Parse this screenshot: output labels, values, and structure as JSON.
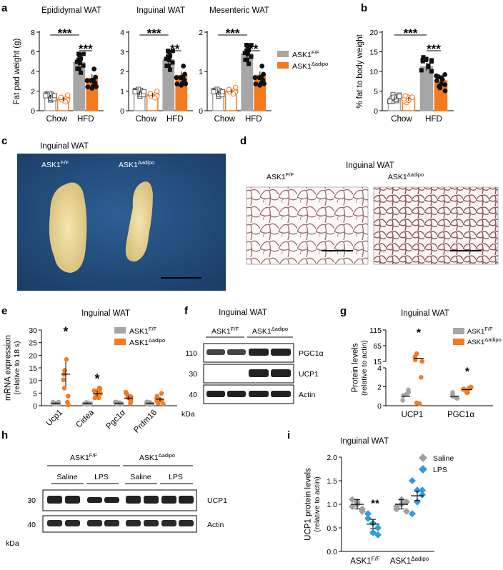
{
  "labels": {
    "a": "a",
    "b": "b",
    "c": "c",
    "d": "d",
    "e": "e",
    "f": "f",
    "g": "g",
    "h": "h",
    "i": "i"
  },
  "legend": {
    "ff_base": "ASK1",
    "ff_sup": "F/F",
    "ad_base": "ASK1",
    "ad_sup": "Δadipo",
    "saline": "Saline",
    "lps": "LPS"
  },
  "colors": {
    "ff": "#a6a6a6",
    "ad": "#f47a20",
    "saline": "#a0a0a0",
    "lps": "#2e9be0"
  },
  "panel_c": {
    "title": "Inguinal WAT"
  },
  "panel_d": {
    "title": "Inguinal WAT"
  },
  "panel_f": {
    "title": "Inguinal WAT",
    "kda": "kDa",
    "markers": [
      "110",
      "30",
      "40"
    ],
    "bands": [
      "PGC1α",
      "UCP1",
      "Actin"
    ]
  },
  "panel_h": {
    "kda": "kDa",
    "markers": [
      "30",
      "40"
    ],
    "bands": [
      "UCP1",
      "Actin"
    ],
    "groups": [
      "Saline",
      "LPS",
      "Saline",
      "LPS"
    ]
  },
  "chart_data": [
    {
      "id": "a1",
      "type": "bar",
      "title": "Epididymal WAT",
      "ylabel": "Fat pad weight (g)",
      "categories": [
        "Chow",
        "HFD"
      ],
      "ylim": [
        0,
        8
      ],
      "yticks": [
        0,
        2,
        4,
        6,
        8
      ],
      "series": [
        {
          "name": "ASK1 F/F",
          "values": [
            1.4,
            4.9
          ]
        },
        {
          "name": "ASK1 Δadipo",
          "values": [
            1.2,
            3.3
          ]
        }
      ],
      "sig": [
        {
          "label": "***",
          "pair": "chow-ff vs hfd-ff"
        },
        {
          "label": "***",
          "pair": "hfd-ff vs hfd-ad"
        }
      ]
    },
    {
      "id": "a2",
      "type": "bar",
      "title": "Inguinal WAT",
      "ylabel": "",
      "categories": [
        "Chow",
        "HFD"
      ],
      "ylim": [
        0,
        4
      ],
      "yticks": [
        0,
        1,
        2,
        3,
        4
      ],
      "series": [
        {
          "name": "ASK1 F/F",
          "values": [
            0.9,
            2.6
          ]
        },
        {
          "name": "ASK1 Δadipo",
          "values": [
            0.8,
            1.8
          ]
        }
      ],
      "sig": [
        {
          "label": "***",
          "pair": "chow-ff vs hfd-ff"
        },
        {
          "label": "**",
          "pair": "hfd-ff vs hfd-ad"
        }
      ]
    },
    {
      "id": "a3",
      "type": "bar",
      "title": "Mesenteric WAT",
      "ylabel": "",
      "categories": [
        "Chow",
        "HFD"
      ],
      "ylim": [
        0,
        2
      ],
      "yticks": [
        0,
        1,
        2
      ],
      "series": [
        {
          "name": "ASK1 F/F",
          "values": [
            0.45,
            1.45
          ]
        },
        {
          "name": "ASK1 Δadipo",
          "values": [
            0.5,
            0.9
          ]
        }
      ],
      "sig": [
        {
          "label": "***",
          "pair": "chow-ff vs hfd-ff"
        },
        {
          "label": "**",
          "pair": "hfd-ff vs hfd-ad"
        }
      ]
    },
    {
      "id": "b",
      "type": "bar",
      "title": "",
      "ylabel": "% fat to body weight",
      "categories": [
        "Chow",
        "HFD"
      ],
      "ylim": [
        0,
        20
      ],
      "yticks": [
        0,
        5,
        10,
        15,
        20
      ],
      "series": [
        {
          "name": "ASK1 F/F",
          "values": [
            3.2,
            11.2
          ]
        },
        {
          "name": "ASK1 Δadipo",
          "values": [
            3.0,
            7.6
          ]
        }
      ],
      "sig": [
        {
          "label": "***",
          "pair": "chow-ff vs hfd-ff"
        },
        {
          "label": "***",
          "pair": "hfd-ff vs hfd-ad"
        }
      ]
    },
    {
      "id": "e",
      "type": "scatter",
      "title": "Inguinal WAT",
      "ylabel": "mRNA expression (relative to 18 s)",
      "categories": [
        "Ucp1",
        "Cidea",
        "Pgc1α",
        "Prdm16"
      ],
      "ylim": [
        0,
        30
      ],
      "yticks": [
        0,
        5,
        10,
        15,
        20,
        25,
        30
      ],
      "series": [
        {
          "name": "ASK1 F/F",
          "means": [
            1.0,
            1.0,
            1.0,
            1.0
          ]
        },
        {
          "name": "ASK1 Δadipo",
          "means": [
            12.5,
            4.8,
            3.0,
            2.6
          ]
        }
      ],
      "sig": [
        "*",
        "*",
        "",
        ""
      ]
    },
    {
      "id": "g",
      "type": "scatter",
      "title": "Inguinal WAT",
      "ylabel": "Protein levels (relative to actin)",
      "categories": [
        "UCP1",
        "PGC1α"
      ],
      "yticks_bottom": [
        0,
        2,
        4
      ],
      "yticks_top": [
        15,
        65,
        115
      ],
      "series": [
        {
          "name": "ASK1 F/F",
          "means": [
            1.0,
            1.0
          ]
        },
        {
          "name": "ASK1 Δadipo",
          "means": [
            25,
            1.7
          ]
        }
      ],
      "sig": [
        "*",
        "*"
      ]
    },
    {
      "id": "i",
      "type": "scatter",
      "title": "Inguinal WAT",
      "ylabel": "UCP1 protein levels (relative to actin)",
      "categories": [
        "ASK1F/F",
        "ASK1Δadipo"
      ],
      "ylim": [
        0,
        2.0
      ],
      "yticks": [
        0.0,
        0.5,
        1.0,
        1.5,
        2.0
      ],
      "series": [
        {
          "name": "Saline",
          "means": [
            1.0,
            1.0
          ]
        },
        {
          "name": "LPS",
          "means": [
            0.58,
            1.18
          ]
        }
      ],
      "sig": [
        "**",
        ""
      ]
    }
  ]
}
